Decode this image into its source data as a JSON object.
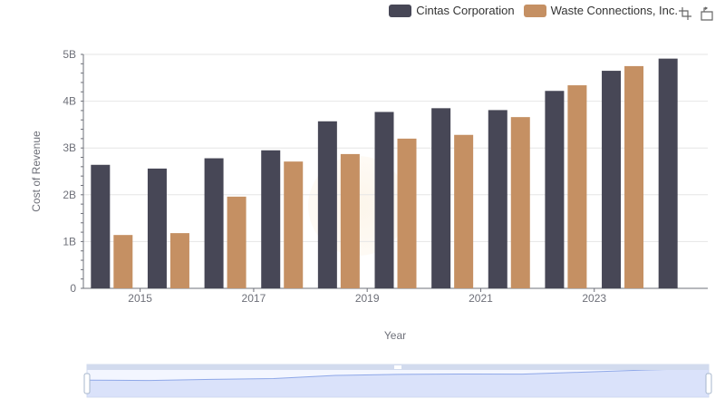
{
  "legend": {
    "items": [
      {
        "label": "Cintas Corporation",
        "color": "#474756"
      },
      {
        "label": "Waste Connections, Inc.",
        "color": "#c59063"
      }
    ]
  },
  "toolbox": {
    "icons": [
      "zoom-icon",
      "restore-icon"
    ]
  },
  "chart_data": {
    "type": "bar",
    "categories": [
      "2014",
      "2015",
      "2016",
      "2017",
      "2018",
      "2019",
      "2020",
      "2021",
      "2022",
      "2023",
      "2024"
    ],
    "x_tick_labels": [
      "2015",
      "2017",
      "2019",
      "2021",
      "2023"
    ],
    "series": [
      {
        "name": "Cintas Corporation",
        "color": "#474756",
        "values": [
          2.64,
          2.56,
          2.78,
          2.95,
          3.57,
          3.77,
          3.85,
          3.81,
          4.22,
          4.65,
          4.91
        ]
      },
      {
        "name": "Waste Connections, Inc.",
        "color": "#c59063",
        "values": [
          1.14,
          1.18,
          1.96,
          2.71,
          2.87,
          3.2,
          3.28,
          3.66,
          4.34,
          4.75,
          null
        ]
      }
    ],
    "xlabel": "Year",
    "ylabel": "Cost of Revenue",
    "ylim": [
      0,
      5
    ],
    "y_ticks": [
      "0",
      "1B",
      "2B",
      "3B",
      "4B",
      "5B"
    ],
    "grid": true,
    "legend_position": "top-right"
  }
}
